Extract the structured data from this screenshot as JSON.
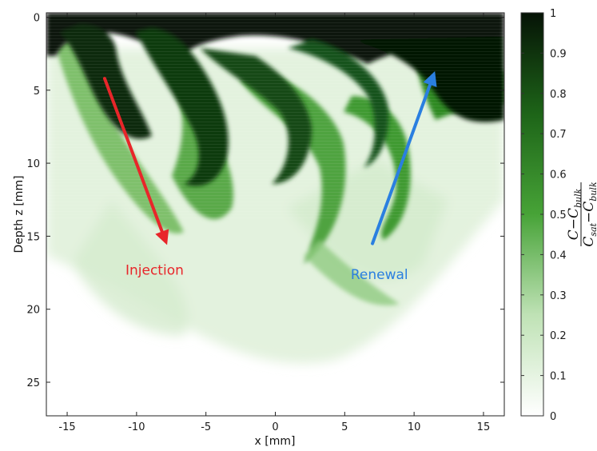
{
  "chart_data": {
    "type": "heatmap",
    "title": "",
    "xlabel": "x [mm]",
    "ylabel": "Depth z [mm]",
    "xlim": [
      -16.5,
      16.5
    ],
    "ylim": [
      27.3,
      -0.3
    ],
    "x_ticks": [
      "-15",
      "-10",
      "-5",
      "0",
      "5",
      "10",
      "15"
    ],
    "y_ticks": [
      "0",
      "5",
      "10",
      "15",
      "20",
      "25"
    ],
    "colorbar": {
      "label_numerator": "C−C",
      "label_numerator_sub": "bulk",
      "label_denominator": "C",
      "label_denominator_sub1": "sat",
      "label_denominator_mid": "−C",
      "label_denominator_sub2": "bulk",
      "range": [
        0,
        1
      ],
      "ticks": [
        "0",
        "0.1",
        "0.2",
        "0.3",
        "0.4",
        "0.5",
        "0.6",
        "0.7",
        "0.8",
        "0.9",
        "1"
      ],
      "low_color": "#ffffff",
      "mid_color": "#3fa32f",
      "high_color": "#061306"
    },
    "annotations": [
      {
        "text": "Injection",
        "color": "#e8262a",
        "arrow_from": [
          -12.3,
          4.2
        ],
        "arrow_to": [
          -7.8,
          15.6
        ]
      },
      {
        "text": "Renewal",
        "color": "#2a7fe0",
        "arrow_from": [
          7.0,
          15.5
        ],
        "arrow_to": [
          11.5,
          3.7
        ]
      }
    ]
  },
  "grid": false
}
